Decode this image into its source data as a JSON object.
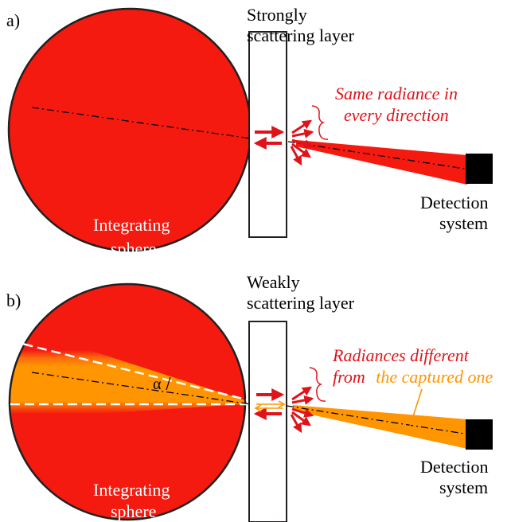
{
  "colors": {
    "sphere_red": "#f41a10",
    "orange": "#ff9500",
    "annotation_red": "#e0131a",
    "detector": "#000000",
    "stroke": "#231f20"
  },
  "panel_a": {
    "label": "a)",
    "layer_label_line1": "Strongly",
    "layer_label_line2": "scattering layer",
    "annotation_line1": "Same radiance in",
    "annotation_line2": "every direction",
    "sphere_label_line1": "Integrating",
    "sphere_label_line2": "sphere",
    "detector_label_line1": "Detection",
    "detector_label_line2": "system"
  },
  "panel_b": {
    "label": "b)",
    "layer_label_line1": "Weakly",
    "layer_label_line2": "scattering layer",
    "annotation_line1": "Radiances different",
    "annotation_part_red": "from",
    "annotation_part_orange": "the captured one",
    "angle_label": "α",
    "sphere_label_line1": "Integrating",
    "sphere_label_line2": "sphere",
    "detector_label_line1": "Detection",
    "detector_label_line2": "system"
  }
}
